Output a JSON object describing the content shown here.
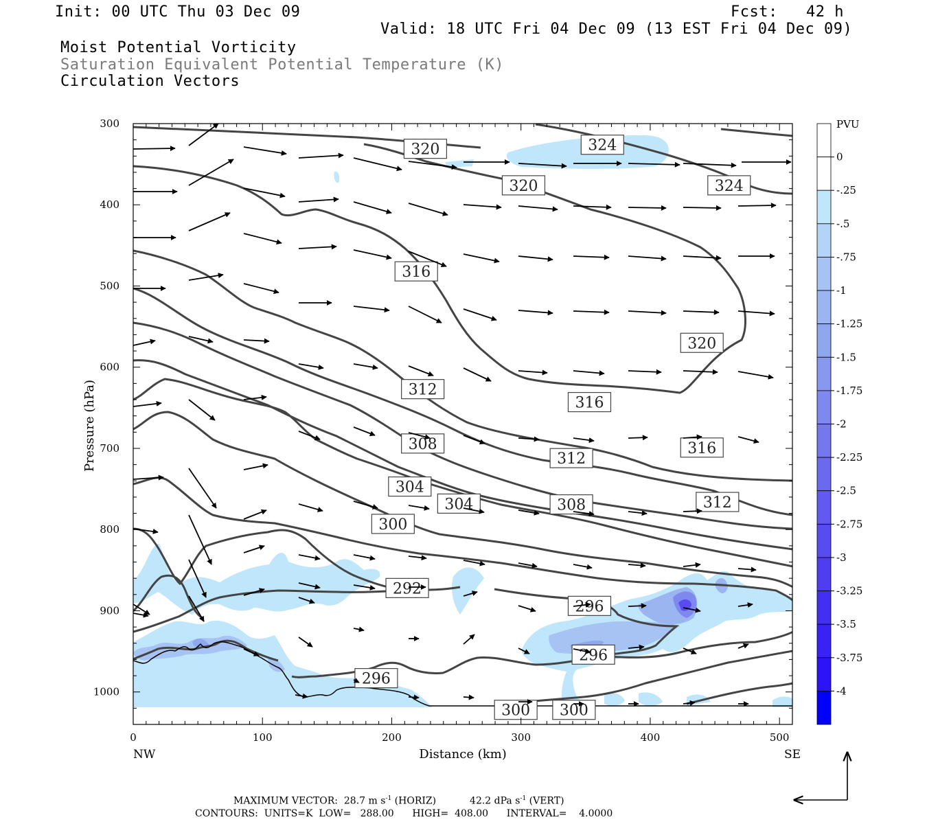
{
  "header": {
    "init": "Init: 00 UTC Thu 03 Dec 09",
    "fcst": "Fcst:   42 h",
    "valid": "Valid: 18 UTC Fri 04 Dec 09 (13 EST Fri 04 Dec 09)",
    "line1": "Moist Potential Vorticity",
    "line2": "Saturation Equivalent Potential Temperature (K)",
    "line3": "Circulation Vectors"
  },
  "footer": {
    "vector_label": "MAXIMUM VECTOR:",
    "vector_horiz": "28.7 m s",
    "vector_horiz_unit": "(HORIZ)",
    "vector_vert": "42.2 dPa s",
    "vector_vert_unit": "(VERT)",
    "exp": "-1",
    "contours": "CONTOURS:  UNITS=K  LOW=   288.00      HIGH=  408.00      INTERVAL=    4.0000"
  },
  "colorbar": {
    "unit": "PVU",
    "labels": [
      "0",
      "-.25",
      "-.5",
      "-.75",
      "-1",
      "-1.25",
      "-1.5",
      "-1.75",
      "-2",
      "-2.25",
      "-2.5",
      "-2.75",
      "-3",
      "-3.25",
      "-3.5",
      "-3.75",
      "-4"
    ],
    "colors": [
      "#ffffff",
      "#bfe6fa",
      "#b3d4f6",
      "#a7c3f3",
      "#9ab5f0",
      "#8fa7ef",
      "#8798ee",
      "#7e88ee",
      "#7578ed",
      "#6b69ed",
      "#625aee",
      "#584bef",
      "#4e3ef0",
      "#432ff2",
      "#3a22f4",
      "#2d13f7",
      "#0000ff"
    ]
  },
  "chart_data": {
    "type": "contour",
    "xlabel": "Distance (km)",
    "ylabel": "Pressure (hPa)",
    "xlim": [
      0,
      510
    ],
    "ylim": [
      1040,
      300
    ],
    "xticks": [
      "0",
      "100",
      "200",
      "300",
      "400",
      "500"
    ],
    "yticks": [
      "300",
      "400",
      "500",
      "600",
      "700",
      "800",
      "900",
      "1000"
    ],
    "x_end_labels": {
      "left": "NW",
      "right": "SE"
    },
    "contour_labels": [
      {
        "text": "320",
        "x": 226,
        "p": 331
      },
      {
        "text": "324",
        "x": 363,
        "p": 326
      },
      {
        "text": "320",
        "x": 302,
        "p": 376
      },
      {
        "text": "324",
        "x": 461,
        "p": 376
      },
      {
        "text": "316",
        "x": 219,
        "p": 482
      },
      {
        "text": "320",
        "x": 440,
        "p": 570
      },
      {
        "text": "312",
        "x": 224,
        "p": 627
      },
      {
        "text": "316",
        "x": 353,
        "p": 643
      },
      {
        "text": "308",
        "x": 224,
        "p": 694
      },
      {
        "text": "312",
        "x": 339,
        "p": 712
      },
      {
        "text": "316",
        "x": 440,
        "p": 699
      },
      {
        "text": "304",
        "x": 214,
        "p": 747
      },
      {
        "text": "304",
        "x": 252,
        "p": 768
      },
      {
        "text": "308",
        "x": 339,
        "p": 769
      },
      {
        "text": "312",
        "x": 452,
        "p": 766
      },
      {
        "text": "300",
        "x": 201,
        "p": 793
      },
      {
        "text": "292",
        "x": 212,
        "p": 872
      },
      {
        "text": "296",
        "x": 353,
        "p": 894
      },
      {
        "text": "296",
        "x": 356,
        "p": 954
      },
      {
        "text": "296",
        "x": 188,
        "p": 983
      },
      {
        "text": "300",
        "x": 296,
        "p": 1022
      },
      {
        "text": "300",
        "x": 341,
        "p": 1022
      }
    ]
  }
}
